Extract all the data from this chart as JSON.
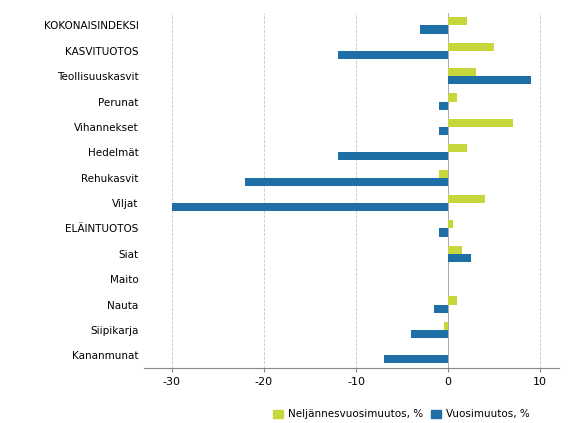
{
  "categories": [
    "KOKONAISINDEKSI",
    "KASVITUOTOS",
    "Teollisuuskasvit",
    "Perunat",
    "Vihannekset",
    "Hedelmät",
    "Rehukasvit",
    "Viljat",
    "ELÄINTUOTOS",
    "Siat",
    "Maito",
    "Nauta",
    "Siipikarja",
    "Kananmunat"
  ],
  "quarterly_change": [
    2.0,
    5.0,
    3.0,
    1.0,
    7.0,
    2.0,
    -1.0,
    4.0,
    0.5,
    1.5,
    0.0,
    1.0,
    -0.5,
    0.0
  ],
  "annual_change": [
    -3.0,
    -12.0,
    9.0,
    -1.0,
    -1.0,
    -12.0,
    -22.0,
    -30.0,
    -1.0,
    2.5,
    0.0,
    -1.5,
    -4.0,
    -7.0
  ],
  "color_quarterly": "#c7d63a",
  "color_annual": "#1e6fa5",
  "xlim": [
    -33,
    12
  ],
  "xticks": [
    -30,
    -20,
    -10,
    0,
    10
  ],
  "legend_quarterly": "Neljännesvuosimuutos, %",
  "legend_annual": "Vuosimuutos, %",
  "figure_width": 5.76,
  "figure_height": 4.23,
  "dpi": 100,
  "bar_height": 0.32,
  "background_color": "#ffffff",
  "grid_color": "#c8c8c8",
  "header_categories": [
    "KOKONAISINDEKSI",
    "KASVITUOTOS",
    "ELÄINTUOTOS"
  ]
}
